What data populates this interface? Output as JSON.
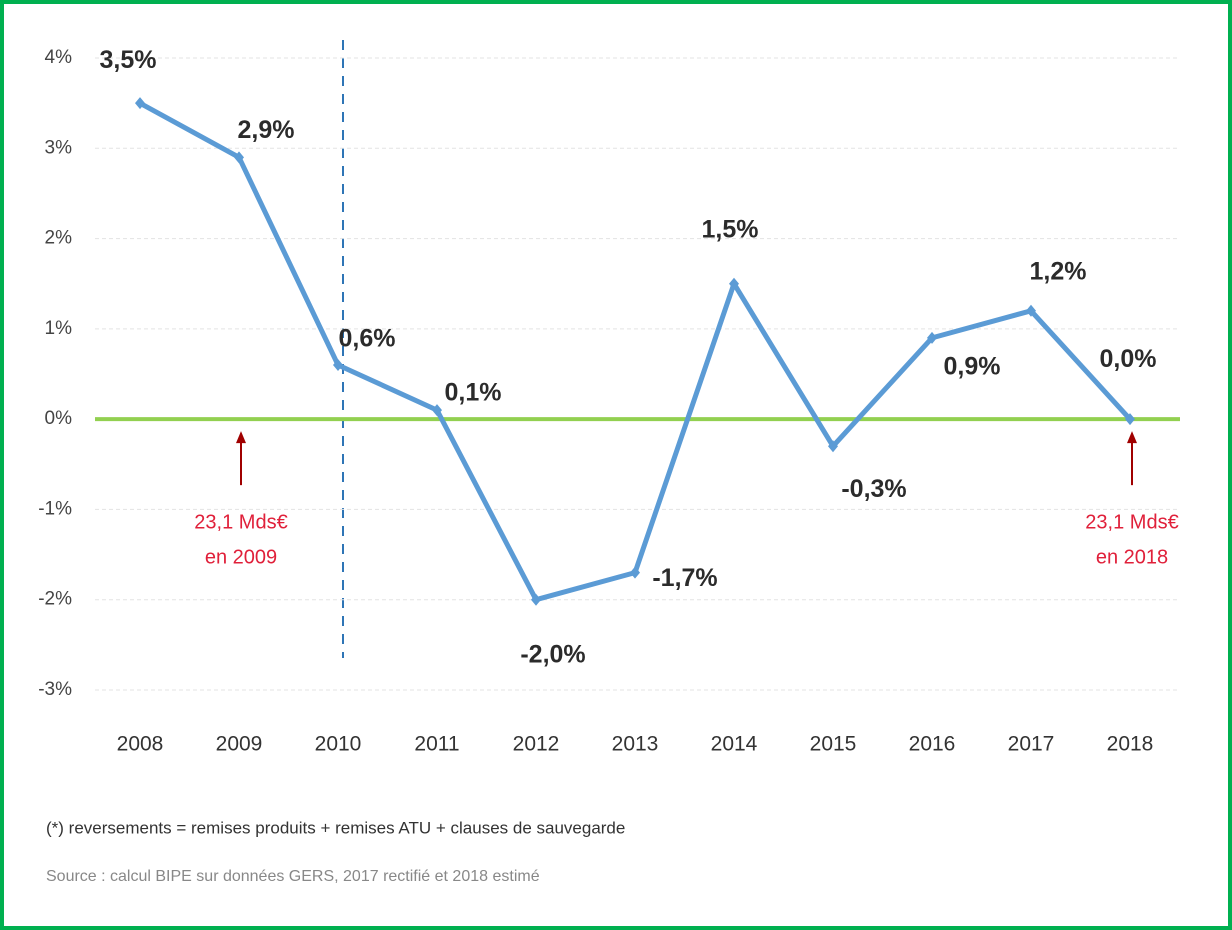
{
  "chart_data": {
    "type": "line",
    "categories": [
      "2008",
      "2009",
      "2010",
      "2011",
      "2012",
      "2013",
      "2014",
      "2015",
      "2016",
      "2017",
      "2018"
    ],
    "series": [
      {
        "color": "#5b9bd5",
        "values": [
          3.5,
          2.9,
          0.6,
          0.1,
          -2.0,
          -1.7,
          1.5,
          -0.3,
          0.9,
          1.2,
          0.0
        ],
        "value_labels": [
          "3,5%",
          "2,9%",
          "0,6%",
          "0,1%",
          "-2,0%",
          "-1,7%",
          "1,5%",
          "-0,3%",
          "0,9%",
          "1,2%",
          "0,0%"
        ]
      }
    ],
    "ylim": [
      -3,
      4
    ],
    "yticks": [
      {
        "value": -3,
        "label": "-3%"
      },
      {
        "value": -2,
        "label": "-2%"
      },
      {
        "value": -1,
        "label": "-1%"
      },
      {
        "value": 0,
        "label": "0%"
      },
      {
        "value": 1,
        "label": "1%"
      },
      {
        "value": 2,
        "label": "2%"
      },
      {
        "value": 3,
        "label": "3%"
      },
      {
        "value": 4,
        "label": "4%"
      }
    ],
    "grid": true,
    "zero_line_color": "#92d050",
    "annotations": [
      {
        "category": "2009",
        "lines": [
          "23,1 Mds€",
          "en 2009"
        ]
      },
      {
        "category": "2018",
        "lines": [
          "23,1 Mds€",
          "en 2018"
        ]
      }
    ],
    "footnotes": [
      "(*) reversements = remises produits + remises ATU + clauses de sauvegarde",
      "Source :  calcul BIPE sur données GERS, 2017 rectifié et 2018 estimé"
    ]
  }
}
